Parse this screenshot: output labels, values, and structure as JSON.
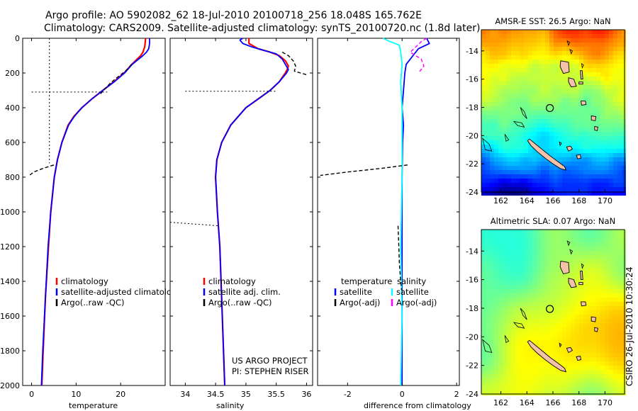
{
  "header": {
    "line1": "Argo profile: AO 5902082_62 18-Jul-2010 20100718_256 18.048S 165.762E",
    "line2": "Climatology: CARS2009. Satellite-adjusted climatology: synTS_20100720.nc (1.8d later)"
  },
  "side_label": "CSIRO 26-Jul-2010 10:30:24",
  "colors": {
    "climatology": "#ff0000",
    "satellite": "#0000ff",
    "argo": "#000000",
    "satellite_diff": "#00ffff",
    "argo_diff": "#ff00ff",
    "land": "#f4c2a8"
  },
  "chart_data": [
    {
      "id": "temperature",
      "type": "line",
      "xlabel": "temperature",
      "ylabel": "",
      "xlim": [
        -2,
        30
      ],
      "ylim": [
        0,
        2000
      ],
      "y_inverted": true,
      "xticks": [
        0,
        10,
        20
      ],
      "xtick_labels": [
        "0",
        "10",
        "20"
      ],
      "yticks": [
        0,
        200,
        400,
        600,
        800,
        1000,
        1200,
        1400,
        1600,
        1800,
        2000
      ],
      "ytick_labels": [
        "0",
        "200",
        "400",
        "600",
        "800",
        "1000",
        "1200",
        "1400",
        "1600",
        "1800",
        "2000"
      ],
      "legend": [
        "climatology",
        "satellite-adjusted climatology",
        "Argo(..raw -QC)"
      ],
      "series": [
        {
          "name": "climatology",
          "color": "#ff0000",
          "width": 2.2,
          "depth": [
            0,
            30,
            50,
            80,
            100,
            150,
            200,
            250,
            300,
            350,
            400,
            450,
            500,
            600,
            700,
            800,
            1000,
            1200,
            1500,
            1800,
            2000
          ],
          "values": [
            25.6,
            25.5,
            25.4,
            25.0,
            24.5,
            22.5,
            20.8,
            18.5,
            16.0,
            13.5,
            11.3,
            9.5,
            8.2,
            6.8,
            5.8,
            5.1,
            4.3,
            3.8,
            3.1,
            2.6,
            2.3
          ]
        },
        {
          "name": "satellite-adjusted climatology",
          "color": "#0000ff",
          "width": 1.8,
          "depth": [
            0,
            30,
            60,
            80,
            100,
            150,
            200,
            250,
            300,
            350,
            400,
            450,
            500,
            600,
            700,
            800,
            1000,
            1200,
            1500,
            1800,
            2000
          ],
          "values": [
            26.5,
            26.5,
            26.3,
            25.8,
            25.0,
            22.6,
            20.9,
            18.6,
            16.0,
            13.5,
            11.3,
            9.6,
            8.3,
            6.8,
            5.8,
            5.1,
            4.3,
            3.7,
            3.1,
            2.5,
            2.2
          ]
        },
        {
          "name": "Argo(..raw -QC)",
          "color": "#000000",
          "width": 1.2,
          "dash": "5,3",
          "depth": [
            150,
            170,
            190,
            210,
            230,
            260,
            290,
            320
          ],
          "values": [
            22.4,
            21.8,
            21.0,
            20.0,
            19.0,
            17.6,
            16.5,
            15.5
          ]
        },
        {
          "name": "Argo(..raw -QC)",
          "color": "#000000",
          "width": 1.4,
          "dash": "5,3",
          "depth": [
            730,
            750,
            770,
            790
          ],
          "values": [
            5.0,
            2.5,
            0.5,
            -0.5
          ]
        },
        {
          "name": "Argo(..raw -QC)",
          "color": "#000000",
          "width": 1.0,
          "dash": "2,3",
          "depth": [
            0,
            720
          ],
          "values": [
            4.0,
            4.0
          ]
        },
        {
          "name": "Argo(..raw -QC)",
          "color": "#000000",
          "width": 1.0,
          "dash": "2,3",
          "depth": [
            310,
            310
          ],
          "values": [
            0,
            17
          ]
        }
      ]
    },
    {
      "id": "salinity",
      "type": "line",
      "xlabel": "salinity",
      "xlim": [
        33.75,
        36.1
      ],
      "ylim": [
        0,
        2000
      ],
      "y_inverted": true,
      "xticks": [
        34,
        34.5,
        35,
        35.5,
        36
      ],
      "xtick_labels": [
        "34",
        "34.5",
        "35",
        "35.5",
        "36"
      ],
      "yticks": [
        0,
        200,
        400,
        600,
        800,
        1000,
        1200,
        1400,
        1600,
        1800,
        2000
      ],
      "legend": [
        "climatology",
        "satellite adj. clim.",
        "Argo(..raw -QC)"
      ],
      "annotation": [
        "US ARGO PROJECT",
        "PI: STEPHEN RISER"
      ],
      "series": [
        {
          "name": "climatology",
          "color": "#ff0000",
          "width": 2.2,
          "depth": [
            0,
            30,
            60,
            80,
            100,
            130,
            160,
            180,
            200,
            250,
            300,
            350,
            400,
            500,
            600,
            700,
            800,
            1000,
            1200,
            1500,
            1800,
            2000
          ],
          "values": [
            35.05,
            35.05,
            35.2,
            35.4,
            35.55,
            35.65,
            35.7,
            35.68,
            35.65,
            35.55,
            35.4,
            35.2,
            35.0,
            34.75,
            34.6,
            34.52,
            34.5,
            34.53,
            34.57,
            34.6,
            34.63,
            34.65
          ]
        },
        {
          "name": "satellite adj. clim.",
          "color": "#0000ff",
          "width": 1.8,
          "depth": [
            0,
            10,
            30,
            50,
            70,
            90,
            120,
            150,
            180,
            200,
            250,
            300,
            350,
            400,
            500,
            600,
            700,
            800,
            1000,
            1200,
            1500,
            1800,
            2000
          ],
          "values": [
            34.95,
            34.9,
            34.95,
            35.1,
            35.3,
            35.5,
            35.6,
            35.65,
            35.7,
            35.67,
            35.55,
            35.4,
            35.2,
            35.0,
            34.75,
            34.6,
            34.52,
            34.5,
            34.53,
            34.57,
            34.6,
            34.63,
            34.65
          ]
        },
        {
          "name": "Argo(..raw -QC)",
          "color": "#000000",
          "width": 1.4,
          "dash": "5,3",
          "depth": [
            80,
            100,
            130,
            160,
            190,
            200,
            205,
            210
          ],
          "values": [
            35.6,
            35.7,
            35.78,
            35.82,
            35.8,
            35.9,
            35.95,
            36.0
          ]
        },
        {
          "name": "Argo(..raw -QC)",
          "color": "#000000",
          "width": 1.0,
          "dash": "2,3",
          "depth": [
            305,
            305
          ],
          "values": [
            34.0,
            35.5
          ]
        },
        {
          "name": "Argo(..raw -QC)",
          "color": "#000000",
          "width": 1.0,
          "dash": "2,3",
          "depth": [
            1060,
            1080
          ],
          "values": [
            33.75,
            34.55
          ]
        }
      ]
    },
    {
      "id": "difference",
      "type": "line",
      "xlabel": "difference from climatology",
      "xlim": [
        -3.1,
        2.1
      ],
      "ylim": [
        0,
        2000
      ],
      "y_inverted": true,
      "xticks": [
        -2,
        0,
        2
      ],
      "xtick_labels": [
        "-2",
        "0",
        "2"
      ],
      "yticks": [
        0,
        200,
        400,
        600,
        800,
        1000,
        1200,
        1400,
        1600,
        1800,
        2000
      ],
      "legend_headers": [
        "temperature",
        "salinity"
      ],
      "legend": [
        "satellite",
        "Argo(-adj)",
        "satellite",
        "Argo(-adj)"
      ],
      "series": [
        {
          "name": "temperature satellite",
          "color": "#0000ff",
          "width": 1.8,
          "depth": [
            0,
            30,
            60,
            100,
            150,
            200,
            300,
            400,
            500,
            600,
            800,
            1000,
            1500,
            2000
          ],
          "values": [
            0.9,
            1.0,
            0.6,
            0.4,
            0.15,
            0.1,
            0.05,
            0.0,
            0.05,
            0.02,
            0.0,
            0.0,
            0.0,
            0.0
          ]
        },
        {
          "name": "salinity satellite",
          "color": "#00ffff",
          "width": 1.8,
          "depth": [
            0,
            15,
            40,
            80,
            150,
            250,
            400,
            600,
            800,
            1200,
            1600,
            2000
          ],
          "values": [
            -0.7,
            -0.5,
            -0.1,
            -0.05,
            0.0,
            -0.05,
            0.0,
            0.0,
            0.0,
            -0.05,
            0.0,
            -0.05
          ]
        },
        {
          "name": "temperature Argo(-adj)",
          "color": "#000000",
          "width": 1.4,
          "dash": "5,3",
          "depth": [
            730,
            750,
            770,
            790
          ],
          "values": [
            0.2,
            -0.8,
            -2.0,
            -3.0
          ]
        },
        {
          "name": "temperature Argo(-adj)",
          "color": "#000000",
          "width": 1.4,
          "dash": "5,3",
          "depth": [
            1080,
            1200,
            1300,
            1400,
            1450
          ],
          "values": [
            -0.15,
            -0.12,
            -0.1,
            -0.05,
            -0.02
          ]
        },
        {
          "name": "salinity Argo(-adj)",
          "color": "#ff00ff",
          "width": 1.4,
          "dash": "5,3",
          "depth": [
            0,
            20,
            50,
            80,
            120,
            160,
            200
          ],
          "values": [
            0.9,
            0.7,
            0.5,
            0.3,
            0.7,
            0.8,
            0.6
          ]
        }
      ]
    },
    {
      "id": "sst_map",
      "type": "heatmap",
      "title": "AMSR-E SST: 26.5 Argo: NaN",
      "xlim": [
        160.5,
        171.5
      ],
      "ylim": [
        -24,
        -12.5
      ],
      "xticks": [
        162,
        164,
        166,
        168,
        170
      ],
      "xtick_labels": [
        "162",
        "164",
        "166",
        "168",
        "170"
      ],
      "yticks": [
        -14,
        -16,
        -18,
        -20,
        -22,
        -24
      ],
      "ytick_labels": [
        "-14",
        "-16",
        "-18",
        "-20",
        "-22",
        "-24"
      ],
      "argo_position": [
        165.762,
        -18.048
      ]
    },
    {
      "id": "sla_map",
      "type": "heatmap",
      "title": "Altimetric SLA: 0.07 Argo: NaN",
      "xlim": [
        160.5,
        171.5
      ],
      "ylim": [
        -24,
        -12.5
      ],
      "xticks": [
        162,
        164,
        166,
        168,
        170
      ],
      "xtick_labels": [
        "162",
        "164",
        "166",
        "168",
        "170"
      ],
      "yticks": [
        -14,
        -16,
        -18,
        -20,
        -22,
        -24
      ],
      "ytick_labels": [
        "-14",
        "-16",
        "-18",
        "-20",
        "-22",
        "-24"
      ],
      "argo_position": [
        165.762,
        -18.048
      ]
    }
  ]
}
